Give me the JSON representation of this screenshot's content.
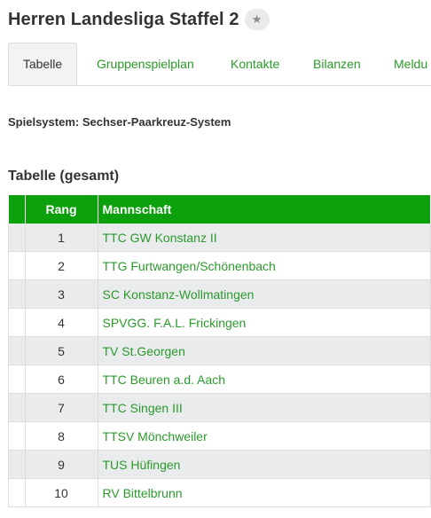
{
  "header": {
    "title": "Herren Landesliga Staffel 2",
    "favorite_icon": "star-icon"
  },
  "tabs": [
    {
      "label": "Tabelle",
      "active": true
    },
    {
      "label": "Gruppenspielplan",
      "active": false
    },
    {
      "label": "Kontakte",
      "active": false
    },
    {
      "label": "Bilanzen",
      "active": false
    },
    {
      "label": "Meldu",
      "active": false
    }
  ],
  "system": "Spielsystem: Sechser-Paarkreuz-System",
  "section_title": "Tabelle (gesamt)",
  "table": {
    "columns": {
      "rank": "Rang",
      "team": "Mannschaft"
    },
    "rows": [
      {
        "rank": "1",
        "team": "TTC GW Konstanz II"
      },
      {
        "rank": "2",
        "team": "TTG Furtwangen/Schönenbach"
      },
      {
        "rank": "3",
        "team": "SC Konstanz-Wollmatingen"
      },
      {
        "rank": "4",
        "team": "SPVGG. F.A.L. Frickingen"
      },
      {
        "rank": "5",
        "team": "TV St.Georgen"
      },
      {
        "rank": "6",
        "team": "TTC Beuren a.d. Aach"
      },
      {
        "rank": "7",
        "team": "TTC Singen III"
      },
      {
        "rank": "8",
        "team": "TTSV Mönchweiler"
      },
      {
        "rank": "9",
        "team": "TUS Hüfingen"
      },
      {
        "rank": "10",
        "team": "RV Bittelbrunn"
      }
    ]
  },
  "colors": {
    "accent_green": "#0da00d",
    "link_green": "#2a9a2a",
    "zebra": "#e9ebec"
  }
}
